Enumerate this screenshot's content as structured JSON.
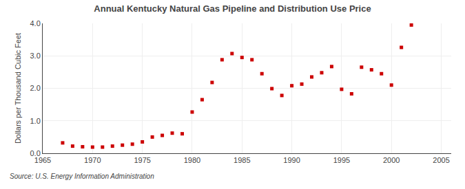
{
  "chart_data": {
    "type": "scatter",
    "title": "Annual Kentucky Natural Gas Pipeline and Distribution Use Price",
    "ylabel": "Dollars per Thousand Cubic Feet",
    "annotations": [
      "Source: U.S. Energy Information Administration"
    ],
    "x": [
      1967,
      1968,
      1969,
      1970,
      1971,
      1972,
      1973,
      1974,
      1975,
      1976,
      1977,
      1978,
      1979,
      1980,
      1981,
      1982,
      1983,
      1984,
      1985,
      1986,
      1987,
      1988,
      1989,
      1990,
      1991,
      1992,
      1993,
      1994,
      1995,
      1996,
      1997,
      1998,
      1999,
      2000,
      2001,
      2002
    ],
    "values": [
      0.32,
      0.22,
      0.2,
      0.19,
      0.19,
      0.22,
      0.25,
      0.28,
      0.35,
      0.5,
      0.55,
      0.62,
      0.6,
      1.27,
      1.65,
      2.18,
      2.88,
      3.07,
      2.95,
      2.88,
      2.45,
      1.99,
      1.78,
      2.08,
      2.13,
      2.35,
      2.48,
      2.67,
      1.97,
      1.83,
      2.65,
      2.57,
      2.45,
      2.1,
      3.26,
      3.95
    ],
    "color": "#cc0000",
    "marker": "square",
    "xlim": [
      1965,
      2006
    ],
    "ylim": [
      0.0,
      4.0
    ],
    "xticks": [
      1965,
      1970,
      1975,
      1980,
      1985,
      1990,
      1995,
      2000,
      2005
    ],
    "yticks": [
      {
        "value": 0.0,
        "label": "0.0"
      },
      {
        "value": 1.0,
        "label": "1.0"
      },
      {
        "value": 2.0,
        "label": "2.0"
      },
      {
        "value": 3.0,
        "label": "3.0"
      },
      {
        "value": 4.0,
        "label": "4.0"
      }
    ],
    "grid": true
  }
}
